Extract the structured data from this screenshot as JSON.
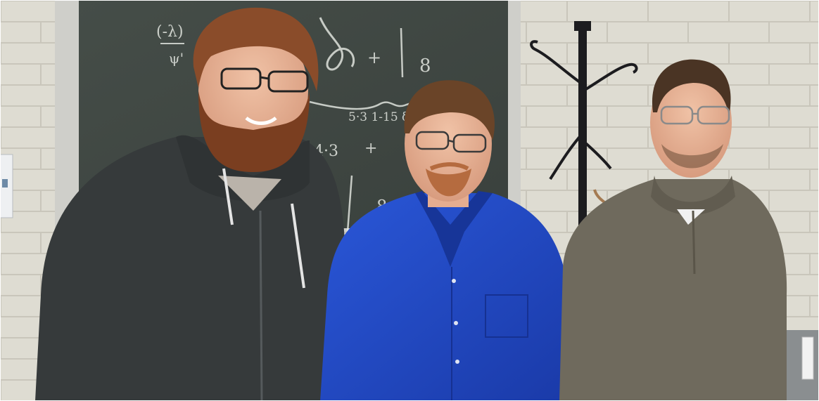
{
  "photo": {
    "colors": {
      "wall": "#dedcd2",
      "mortar": "#c9c6bb",
      "chalkboard": "#3f4742",
      "chalk": "#e9ece6",
      "hoodie": "#363a3b",
      "blue_shirt": "#1f45c0",
      "sweater": "#6f6a5d",
      "coat_rack": "#1c1c1f",
      "hair_red": "#8a4c2a",
      "hair_dark": "#4a3424",
      "skin": "#e7b396"
    },
    "chalkboard_writing": {
      "fraction_num": "(-λ)",
      "fraction_den": "ψ'",
      "plus_1": "+",
      "eight_1": "8",
      "brace_label": "5·3 1-15 δ",
      "product": "4·3",
      "plus_2": "+",
      "eight_2": "8"
    }
  }
}
